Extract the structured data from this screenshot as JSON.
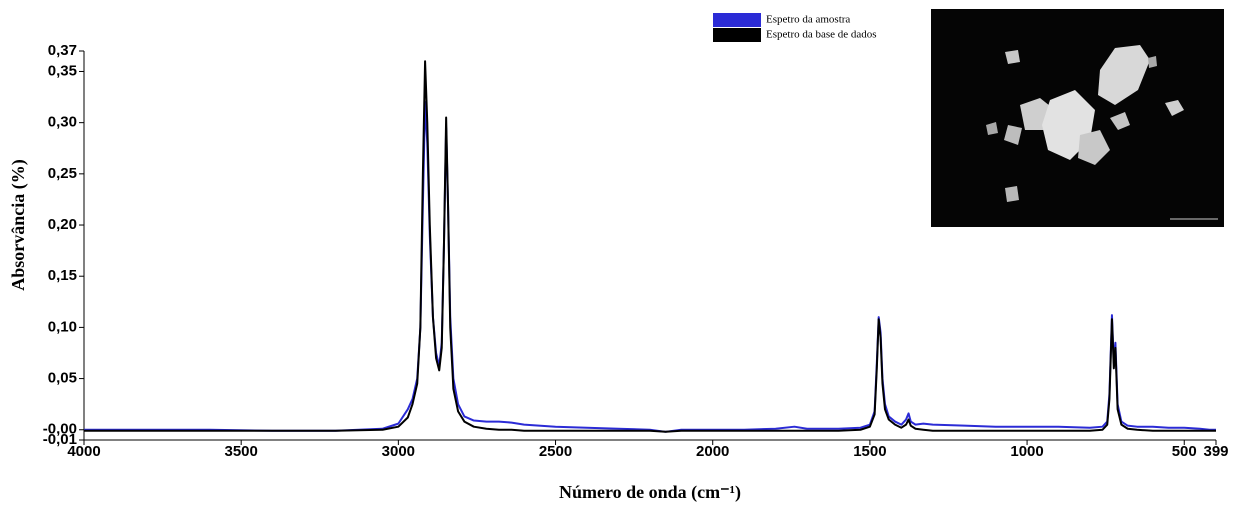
{
  "chart_data": {
    "type": "line",
    "y_label": "Absorvância (%)",
    "x_label": "Número de onda (cm⁻¹)",
    "xlim": [
      4000,
      399
    ],
    "ylim": [
      -0.01,
      0.37
    ],
    "xticks": [
      4000,
      3500,
      3000,
      2500,
      2000,
      1500,
      1000,
      500,
      399
    ],
    "yticks": [
      {
        "value": 0.37,
        "label": "0,37"
      },
      {
        "value": 0.35,
        "label": "0,35"
      },
      {
        "value": 0.3,
        "label": "0,30"
      },
      {
        "value": 0.25,
        "label": "0,25"
      },
      {
        "value": 0.2,
        "label": "0,20"
      },
      {
        "value": 0.15,
        "label": "0,15"
      },
      {
        "value": 0.1,
        "label": "0,10"
      },
      {
        "value": 0.05,
        "label": "0,05"
      },
      {
        "value": 0,
        "label": "-0,00"
      },
      {
        "value": -0.01,
        "label": "-0,01"
      }
    ],
    "legend": "upper right",
    "x": [
      4000,
      3800,
      3600,
      3400,
      3200,
      3050,
      3000,
      2970,
      2955,
      2940,
      2930,
      2922,
      2915,
      2908,
      2900,
      2890,
      2880,
      2870,
      2862,
      2855,
      2848,
      2842,
      2835,
      2825,
      2810,
      2790,
      2760,
      2720,
      2680,
      2640,
      2600,
      2500,
      2400,
      2300,
      2200,
      2150,
      2100,
      2000,
      1900,
      1800,
      1740,
      1700,
      1600,
      1530,
      1500,
      1485,
      1478,
      1472,
      1466,
      1460,
      1452,
      1440,
      1420,
      1400,
      1385,
      1377,
      1370,
      1355,
      1330,
      1300,
      1200,
      1100,
      1000,
      900,
      800,
      760,
      745,
      738,
      730,
      724,
      719,
      712,
      700,
      680,
      650,
      600,
      550,
      500,
      450,
      420,
      399
    ],
    "series": [
      {
        "name": "Espetro da amostra",
        "color": "#2b2bd6",
        "values": [
          0.0,
          0.0,
          0.0,
          -0.001,
          -0.001,
          0.001,
          0.006,
          0.02,
          0.03,
          0.05,
          0.1,
          0.22,
          0.32,
          0.28,
          0.19,
          0.11,
          0.075,
          0.062,
          0.085,
          0.18,
          0.295,
          0.22,
          0.11,
          0.05,
          0.025,
          0.013,
          0.009,
          0.008,
          0.008,
          0.007,
          0.005,
          0.003,
          0.002,
          0.001,
          0.0,
          -0.002,
          0.0,
          0.0,
          0.0,
          0.001,
          0.003,
          0.001,
          0.001,
          0.002,
          0.005,
          0.018,
          0.065,
          0.11,
          0.095,
          0.05,
          0.025,
          0.013,
          0.008,
          0.005,
          0.01,
          0.016,
          0.008,
          0.005,
          0.006,
          0.005,
          0.004,
          0.003,
          0.003,
          0.003,
          0.002,
          0.003,
          0.008,
          0.035,
          0.112,
          0.065,
          0.085,
          0.025,
          0.008,
          0.004,
          0.003,
          0.003,
          0.002,
          0.002,
          0.001,
          0.0,
          0.0
        ]
      },
      {
        "name": "Espetro da base de dados",
        "color": "#000000",
        "values": [
          -0.001,
          -0.001,
          -0.001,
          -0.001,
          -0.001,
          0.0,
          0.003,
          0.012,
          0.025,
          0.045,
          0.1,
          0.25,
          0.36,
          0.3,
          0.2,
          0.11,
          0.07,
          0.058,
          0.08,
          0.18,
          0.305,
          0.22,
          0.1,
          0.04,
          0.018,
          0.008,
          0.003,
          0.001,
          0.0,
          0.0,
          -0.001,
          -0.001,
          -0.001,
          -0.001,
          -0.001,
          -0.002,
          -0.001,
          -0.001,
          -0.001,
          -0.001,
          -0.001,
          -0.001,
          -0.001,
          0.0,
          0.003,
          0.015,
          0.06,
          0.108,
          0.09,
          0.045,
          0.02,
          0.01,
          0.005,
          0.002,
          0.005,
          0.01,
          0.004,
          0.001,
          0.0,
          -0.001,
          -0.001,
          -0.001,
          -0.001,
          -0.001,
          -0.001,
          0.0,
          0.005,
          0.03,
          0.108,
          0.06,
          0.08,
          0.02,
          0.005,
          0.001,
          0.0,
          -0.001,
          -0.001,
          -0.001,
          -0.001,
          -0.001,
          -0.001
        ]
      }
    ]
  }
}
